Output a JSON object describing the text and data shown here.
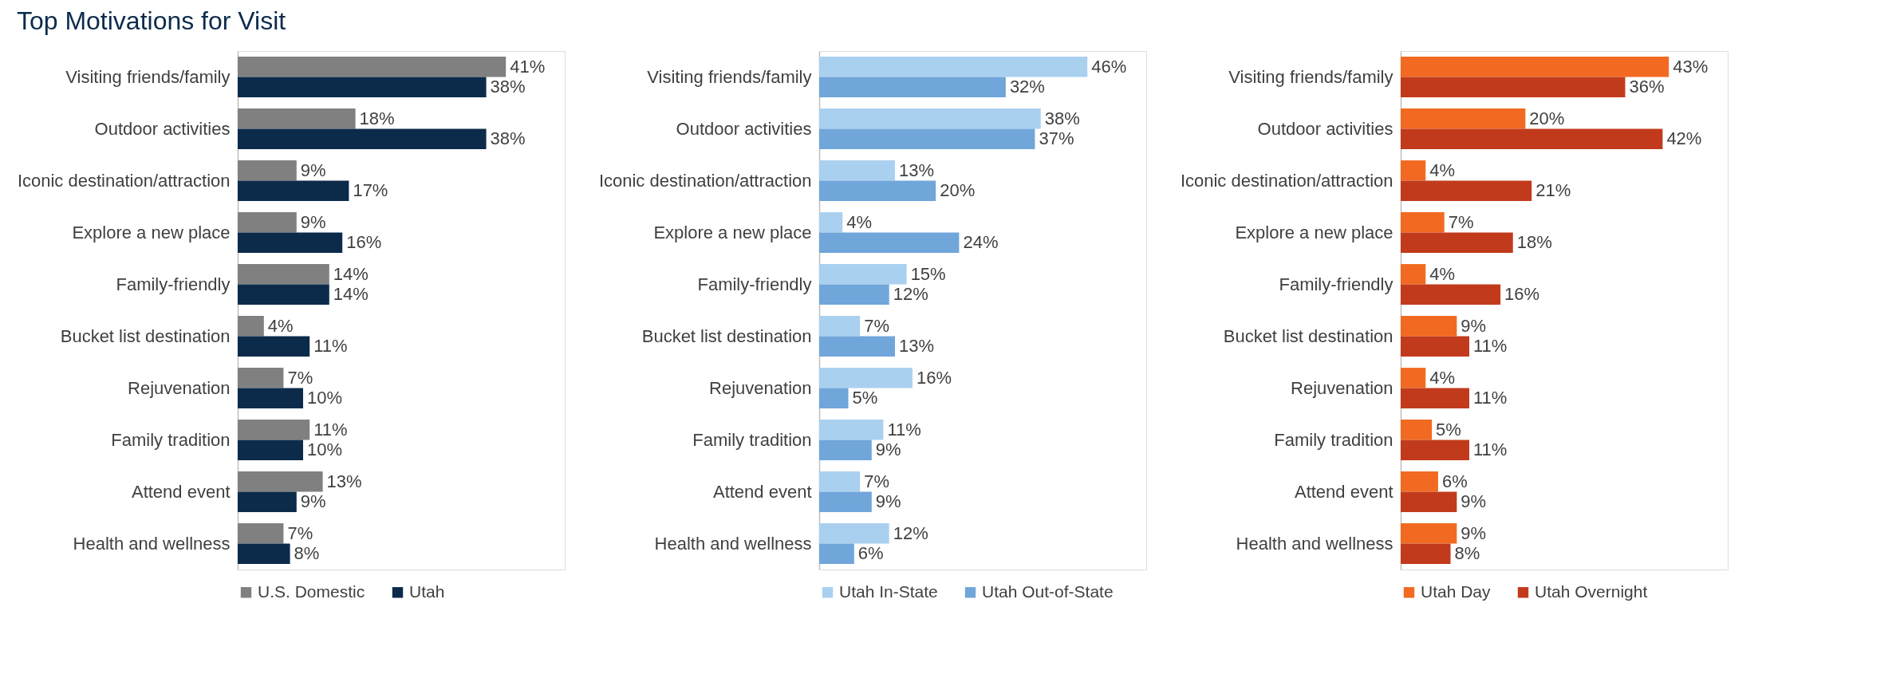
{
  "chart_data": [
    {
      "type": "bar",
      "orientation": "horizontal",
      "title": "Top Motivations for Visit",
      "legend": "bottom",
      "categories": [
        "Visiting friends/family",
        "Outdoor activities",
        "Iconic destination/attraction",
        "Explore a new place",
        "Family-friendly",
        "Bucket list destination",
        "Rejuvenation",
        "Family tradition",
        "Attend event",
        "Health and wellness"
      ],
      "series": [
        {
          "name": "U.S. Domestic",
          "color": "#808080",
          "values": [
            41,
            18,
            9,
            9,
            14,
            4,
            7,
            11,
            13,
            7
          ],
          "value_labels": [
            "41%",
            "18%",
            "9%",
            "9%",
            "14%",
            "4%",
            "7%",
            "11%",
            "13%",
            "7%"
          ]
        },
        {
          "name": "Utah",
          "color": "#0c2b4b",
          "values": [
            38,
            38,
            17,
            16,
            14,
            11,
            10,
            10,
            9,
            8
          ],
          "value_labels": [
            "38%",
            "38%",
            "17%",
            "16%",
            "14%",
            "11%",
            "10%",
            "10%",
            "9%",
            "8%"
          ]
        }
      ]
    },
    {
      "type": "bar",
      "orientation": "horizontal",
      "legend": "bottom",
      "categories": [
        "Visiting friends/family",
        "Outdoor activities",
        "Iconic destination/attraction",
        "Explore a new place",
        "Family-friendly",
        "Bucket list destination",
        "Rejuvenation",
        "Family tradition",
        "Attend event",
        "Health and wellness"
      ],
      "series": [
        {
          "name": "Utah In-State",
          "color": "#aad0f0",
          "values": [
            46,
            38,
            13,
            4,
            15,
            7,
            16,
            11,
            7,
            12
          ],
          "value_labels": [
            "46%",
            "38%",
            "13%",
            "4%",
            "15%",
            "7%",
            "16%",
            "11%",
            "7%",
            "12%"
          ]
        },
        {
          "name": "Utah Out-of-State",
          "color": "#70a6da",
          "values": [
            32,
            37,
            20,
            24,
            12,
            13,
            5,
            9,
            9,
            6
          ],
          "value_labels": [
            "32%",
            "37%",
            "20%",
            "24%",
            "12%",
            "13%",
            "5%",
            "9%",
            "9%",
            "6%"
          ]
        }
      ]
    },
    {
      "type": "bar",
      "orientation": "horizontal",
      "legend": "bottom",
      "categories": [
        "Visiting friends/family",
        "Outdoor activities",
        "Iconic destination/attraction",
        "Explore a new place",
        "Family-friendly",
        "Bucket list destination",
        "Rejuvenation",
        "Family tradition",
        "Attend event",
        "Health and wellness"
      ],
      "series": [
        {
          "name": "Utah Day",
          "color": "#f26a21",
          "values": [
            43,
            20,
            4,
            7,
            4,
            9,
            4,
            5,
            6,
            9
          ],
          "value_labels": [
            "43%",
            "20%",
            "4%",
            "7%",
            "4%",
            "9%",
            "4%",
            "5%",
            "6%",
            "9%"
          ]
        },
        {
          "name": "Utah Overnight",
          "color": "#c23a1c",
          "values": [
            36,
            42,
            21,
            18,
            16,
            11,
            11,
            11,
            9,
            8
          ],
          "value_labels": [
            "36%",
            "42%",
            "21%",
            "18%",
            "16%",
            "11%",
            "11%",
            "11%",
            "9%",
            "8%"
          ]
        }
      ]
    }
  ]
}
